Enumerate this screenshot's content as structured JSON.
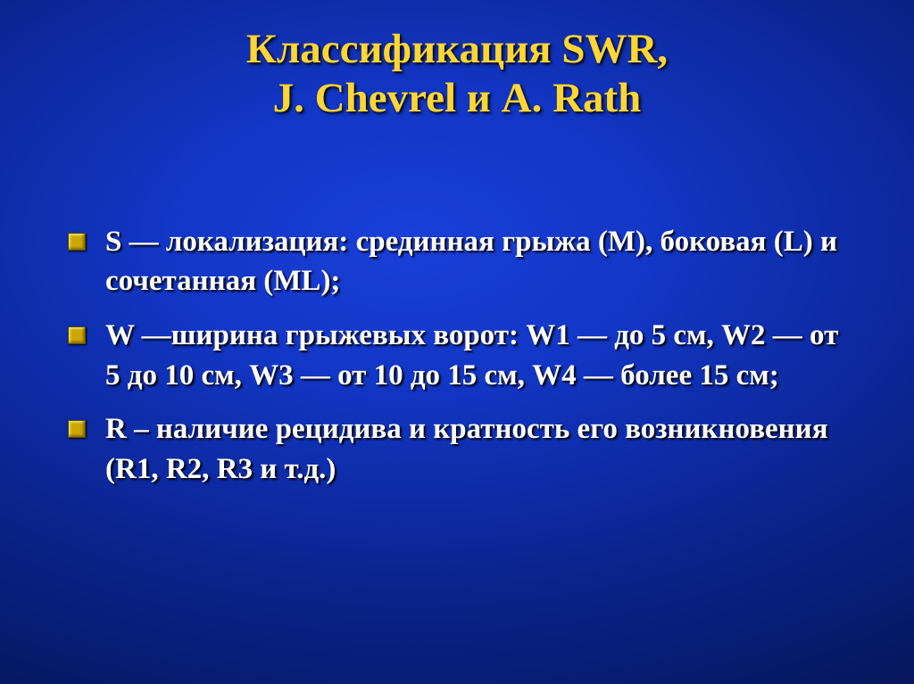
{
  "slide": {
    "background_gradient": [
      "#1a3fd8",
      "#0b2490",
      "#020a33"
    ],
    "title": {
      "line1": "Классификация SWR,",
      "line2": "J. Chevrel и A. Rath",
      "color": "#ffd633",
      "fontsize_pt": 36,
      "font_weight": "bold",
      "shadow_color": "#000000"
    },
    "bullet_style": {
      "marker_color": "#cca600",
      "text_color": "#ffffff",
      "fontsize_pt": 25,
      "font_weight": "bold",
      "shadow_color": "#000000"
    },
    "bullets": [
      " S — локализация: срединная грыжа (М), боковая (L) и сочетанная (МL);",
      "W —ширина грыжевых ворот: W1 — до 5 см, W2 — от 5 до 10 см, W3 — от 10 до 15 см, W4 — более 15 см;",
      "R – наличие рецидива и кратность его возникновения (R1, R2, R3 и т.д.)"
    ]
  }
}
